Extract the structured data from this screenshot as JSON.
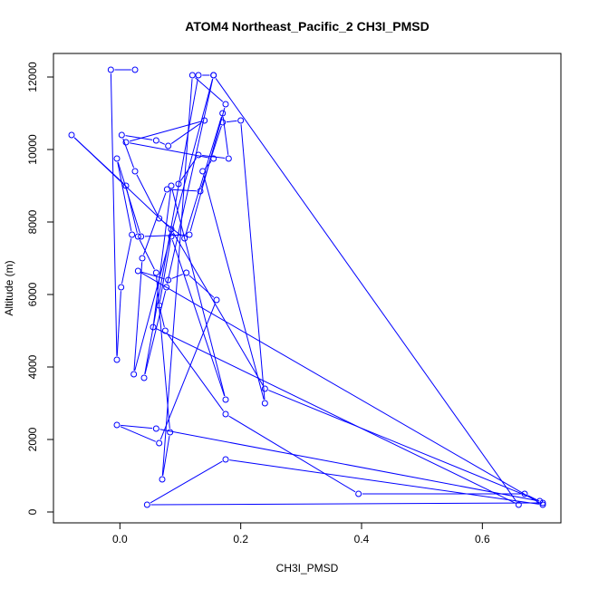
{
  "chart_data": {
    "type": "line",
    "title": "ATOM4 Northeast_Pacific_2 CH3I_PMSD",
    "xlabel": "CH3I_PMSD",
    "ylabel": "Altitude (m)",
    "xlim": [
      -0.11,
      0.73
    ],
    "ylim": [
      -300,
      12650
    ],
    "xticks": [
      0.0,
      0.2,
      0.4,
      0.6
    ],
    "xtick_labels": [
      "0.0",
      "0.2",
      "0.4",
      "0.6"
    ],
    "yticks": [
      0,
      2000,
      4000,
      6000,
      8000,
      10000,
      12000
    ],
    "ytick_labels": [
      "0",
      "2000",
      "4000",
      "6000",
      "8000",
      "10000",
      "12000"
    ],
    "grid": false,
    "legend": "none",
    "color": "#0000ff",
    "marker": "open-circle",
    "series": [
      {
        "x": [
          0.097,
          0.13,
          0.18,
          0.17,
          0.107,
          0.065,
          0.025,
          0.003,
          0.06,
          0.08,
          0.14,
          0.01,
          0.155,
          0.137,
          0.24,
          0.2,
          0.17,
          0.133,
          0.078,
          0.037,
          0.023,
          0.155,
          0.13,
          0.04,
          0.077,
          0.155,
          0.66,
          0.055,
          0.085,
          0.175,
          0.085,
          0.065,
          0.075,
          0.175,
          0.395,
          0.67,
          0.7,
          0.045,
          0.175,
          0.7,
          0.03,
          0.08,
          0.11,
          0.16,
          0.065,
          -0.005,
          0.06,
          0.695,
          0.24,
          0.085,
          -0.08,
          0.01,
          0.03,
          0.06,
          0.083,
          0.07,
          0.12,
          0.175,
          0.115,
          0.035,
          -0.005,
          0.02,
          0.002,
          -0.005,
          -0.015,
          0.025
        ],
        "y": [
          9050,
          9850,
          9750,
          11000,
          7550,
          8100,
          9400,
          10400,
          10250,
          10100,
          10800,
          10200,
          9750,
          9400,
          3000,
          10800,
          10750,
          8850,
          8900,
          7000,
          3800,
          12050,
          12050,
          3700,
          6200,
          12050,
          200,
          5100,
          9000,
          3100,
          7600,
          5700,
          5000,
          2700,
          500,
          500,
          250,
          200,
          1450,
          200,
          6650,
          6400,
          6600,
          5850,
          1900,
          2400,
          2300,
          300,
          3400,
          7800,
          10400,
          9000,
          7600,
          6600,
          2200,
          900,
          12050,
          11250,
          7650,
          7600,
          9750,
          7650,
          6200,
          4200,
          12200,
          12200
        ]
      }
    ]
  }
}
